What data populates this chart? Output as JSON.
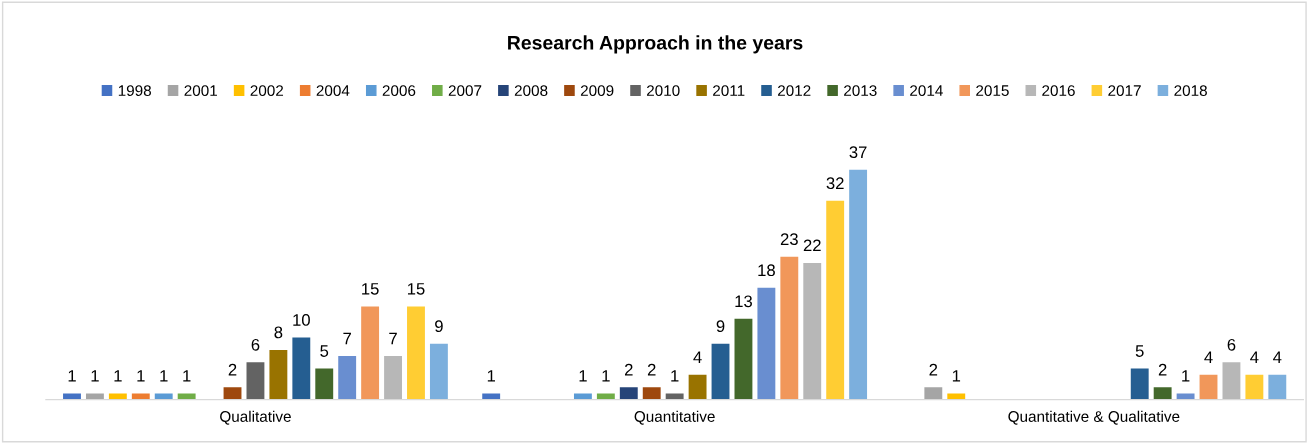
{
  "chart_data": {
    "type": "bar",
    "title": "Research Approach in the years",
    "categories": [
      "Qualitative",
      "Quantitative",
      "Quantitative & Qualitative"
    ],
    "data_labels": true,
    "legend": "top",
    "grid": false,
    "series": [
      {
        "name": "1998",
        "color": "#4472c4",
        "values": [
          1,
          1,
          null
        ]
      },
      {
        "name": "2001",
        "color": "#a5a5a5",
        "values": [
          1,
          null,
          2
        ]
      },
      {
        "name": "2002",
        "color": "#ffc000",
        "values": [
          1,
          null,
          1
        ]
      },
      {
        "name": "2004",
        "color": "#ed7d31",
        "values": [
          1,
          null,
          null
        ]
      },
      {
        "name": "2006",
        "color": "#5b9bd5",
        "values": [
          1,
          1,
          null
        ]
      },
      {
        "name": "2007",
        "color": "#70ad47",
        "values": [
          1,
          1,
          null
        ]
      },
      {
        "name": "2008",
        "color": "#264478",
        "values": [
          null,
          2,
          null
        ]
      },
      {
        "name": "2009",
        "color": "#9e480e",
        "values": [
          2,
          2,
          null
        ]
      },
      {
        "name": "2010",
        "color": "#636363",
        "values": [
          6,
          1,
          null
        ]
      },
      {
        "name": "2011",
        "color": "#997300",
        "values": [
          8,
          4,
          null
        ]
      },
      {
        "name": "2012",
        "color": "#255e91",
        "values": [
          10,
          9,
          5
        ]
      },
      {
        "name": "2013",
        "color": "#43682b",
        "values": [
          5,
          13,
          2
        ]
      },
      {
        "name": "2014",
        "color": "#698ed0",
        "values": [
          7,
          18,
          1
        ]
      },
      {
        "name": "2015",
        "color": "#f1975a",
        "values": [
          15,
          23,
          4
        ]
      },
      {
        "name": "2016",
        "color": "#b7b7b7",
        "values": [
          7,
          22,
          6
        ]
      },
      {
        "name": "2017",
        "color": "#ffcd33",
        "values": [
          15,
          32,
          4
        ]
      },
      {
        "name": "2018",
        "color": "#7cafdd",
        "values": [
          9,
          37,
          4
        ]
      }
    ]
  }
}
